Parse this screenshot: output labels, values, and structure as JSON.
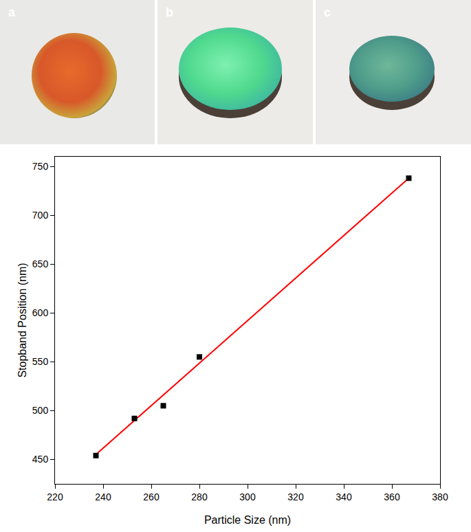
{
  "photo_labels": [
    "a",
    "b",
    "c"
  ],
  "chart_data": {
    "type": "scatter",
    "x_label": "Particle Size (nm)",
    "y_label": "Stopband Position (nm)",
    "series": [
      {
        "type": "line",
        "color": "#ff0000",
        "line_style": "solid",
        "x": [
          237,
          367
        ],
        "values": [
          455,
          738
        ]
      },
      {
        "type": "scatter",
        "color": "#000000",
        "marker": "square",
        "x": [
          237,
          253,
          265,
          280,
          367
        ],
        "values": [
          454,
          492,
          505,
          555,
          738
        ]
      }
    ],
    "xlim": [
      220,
      380
    ],
    "xticks": [
      220,
      240,
      260,
      280,
      300,
      320,
      340,
      360,
      380
    ],
    "ylim": [
      425,
      760
    ],
    "yticks": [
      450,
      500,
      550,
      600,
      650,
      700,
      750
    ],
    "grid": false
  }
}
